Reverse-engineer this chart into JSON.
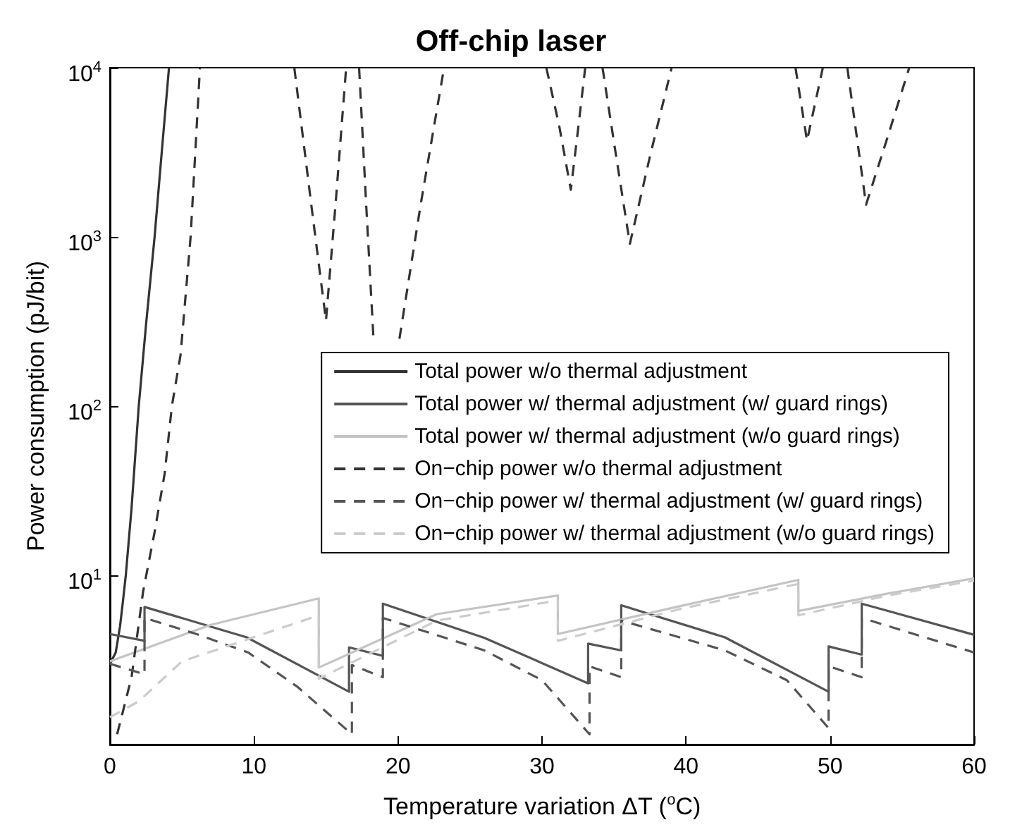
{
  "chart_data": {
    "type": "line",
    "title": "Off-chip laser",
    "xlabel": "Temperature variation ΔT ($^{o}$C)",
    "ylabel": "Power consumption (pJ/bit)",
    "log": "y",
    "xlim": [
      0,
      60
    ],
    "xticks": [
      0,
      10,
      20,
      30,
      40,
      50,
      60
    ],
    "ylim": [
      1,
      10000
    ],
    "yticks": [
      {
        "value": 10,
        "label": "10$^{1}$"
      },
      {
        "value": 100,
        "label": "10$^{2}$"
      },
      {
        "value": 1000,
        "label": "10$^{3}$"
      },
      {
        "value": 10000,
        "label": "10$^{4}$"
      }
    ],
    "legend": "center right",
    "series": [
      {
        "name": "Total power w/o thermal adjustment",
        "color": "#333333",
        "line_style": "solid",
        "x": [
          0,
          0.4,
          0.7,
          0.9,
          1.1,
          1.5,
          2,
          2.5,
          3.1,
          3.6,
          4.1
        ],
        "values": [
          3,
          3.5,
          5,
          7,
          10,
          25,
          100,
          300,
          1000,
          3200,
          10000
        ]
      },
      {
        "name": "Total power w/ thermal adjustment (w/ guard rings)",
        "color": "#555555",
        "line_style": "solid",
        "x": [
          0,
          2.4,
          2.4,
          9.5,
          16.6,
          16.6,
          18.95,
          18.95,
          26,
          33.2,
          33.2,
          35.5,
          35.5,
          42.7,
          49.9,
          49.9,
          52.2,
          52.2,
          60
        ],
        "values": [
          4.5,
          4.1,
          6.5,
          4.3,
          2.05,
          3.75,
          3.34,
          6.8,
          4.27,
          2.3,
          3.95,
          3.6,
          6.65,
          4.3,
          2.05,
          3.8,
          3.4,
          6.8,
          4.45
        ]
      },
      {
        "name": "Total power w/ thermal adjustment (w/o guard rings)",
        "color": "#c4c4c4",
        "line_style": "solid",
        "x": [
          0,
          7,
          14.5,
          14.5,
          22.7,
          31.1,
          31.1,
          39.5,
          47.8,
          47.8,
          54,
          60
        ],
        "values": [
          3.1,
          5.1,
          7.3,
          2.85,
          5.9,
          7.6,
          4.5,
          6.55,
          9.4,
          6.15,
          7.8,
          9.6
        ]
      },
      {
        "name": "On−chip power w/o thermal adjustment",
        "color": "#333333",
        "line_style": "dashed",
        "x": [
          0.5,
          1.5,
          2.3,
          3.1,
          3.8,
          4.3,
          4.9,
          5.6,
          6.25,
          9.5,
          12.8,
          14,
          15,
          15.7,
          16.4,
          16.9,
          17.3,
          17.8,
          18.3,
          19.2,
          20.1,
          21.6,
          23.2,
          26.8,
          30.3,
          31.2,
          32,
          32.5,
          33,
          33.6,
          34.2,
          35.2,
          36.1,
          37.5,
          39,
          43.3,
          47.6,
          48.4,
          49.5,
          50.3,
          51.2,
          52.5,
          54,
          55.5
        ],
        "values": [
          1.15,
          2.5,
          8,
          18,
          40,
          100,
          200,
          1000,
          10000,
          null,
          10000,
          1500,
          320,
          1700,
          10000,
          null,
          10000,
          1500,
          250,
          null,
          250,
          1600,
          10000,
          null,
          10000,
          4500,
          1900,
          4300,
          10000,
          null,
          10000,
          2800,
          910,
          3000,
          10000,
          null,
          10000,
          3700,
          10000,
          null,
          10000,
          1550,
          3900,
          10000
        ]
      },
      {
        "name": "On−chip power w/ thermal adjustment (w/ guard rings)",
        "color": "#555555",
        "line_style": "dashed",
        "x": [
          0,
          2.4,
          2.4,
          6,
          9.6,
          13,
          16.8,
          16.8,
          18.95,
          18.95,
          26,
          30,
          33.3,
          33.3,
          35.5,
          35.5,
          42.7,
          47,
          49.9,
          49.9,
          52.2,
          52.2,
          60
        ],
        "values": [
          3.0,
          2.6,
          5.6,
          4.5,
          3.5,
          2.2,
          1.15,
          2.95,
          2.5,
          5.6,
          3.6,
          2.4,
          1.15,
          2.9,
          2.5,
          5.4,
          3.6,
          2.4,
          1.25,
          2.9,
          2.5,
          5.6,
          3.5
        ]
      },
      {
        "name": "On−chip power w/ thermal adjustment (w/o guard rings)",
        "color": "#cccccc",
        "line_style": "dashed",
        "x": [
          0,
          2,
          5,
          14.5,
          14.5,
          22.7,
          31.1,
          31.1,
          39.5,
          47.8,
          47.8,
          54,
          60
        ],
        "values": [
          1.45,
          1.8,
          3.1,
          5.8,
          2.45,
          5.4,
          7.1,
          4.1,
          6.3,
          8.9,
          5.8,
          7.6,
          9.3
        ]
      }
    ]
  }
}
